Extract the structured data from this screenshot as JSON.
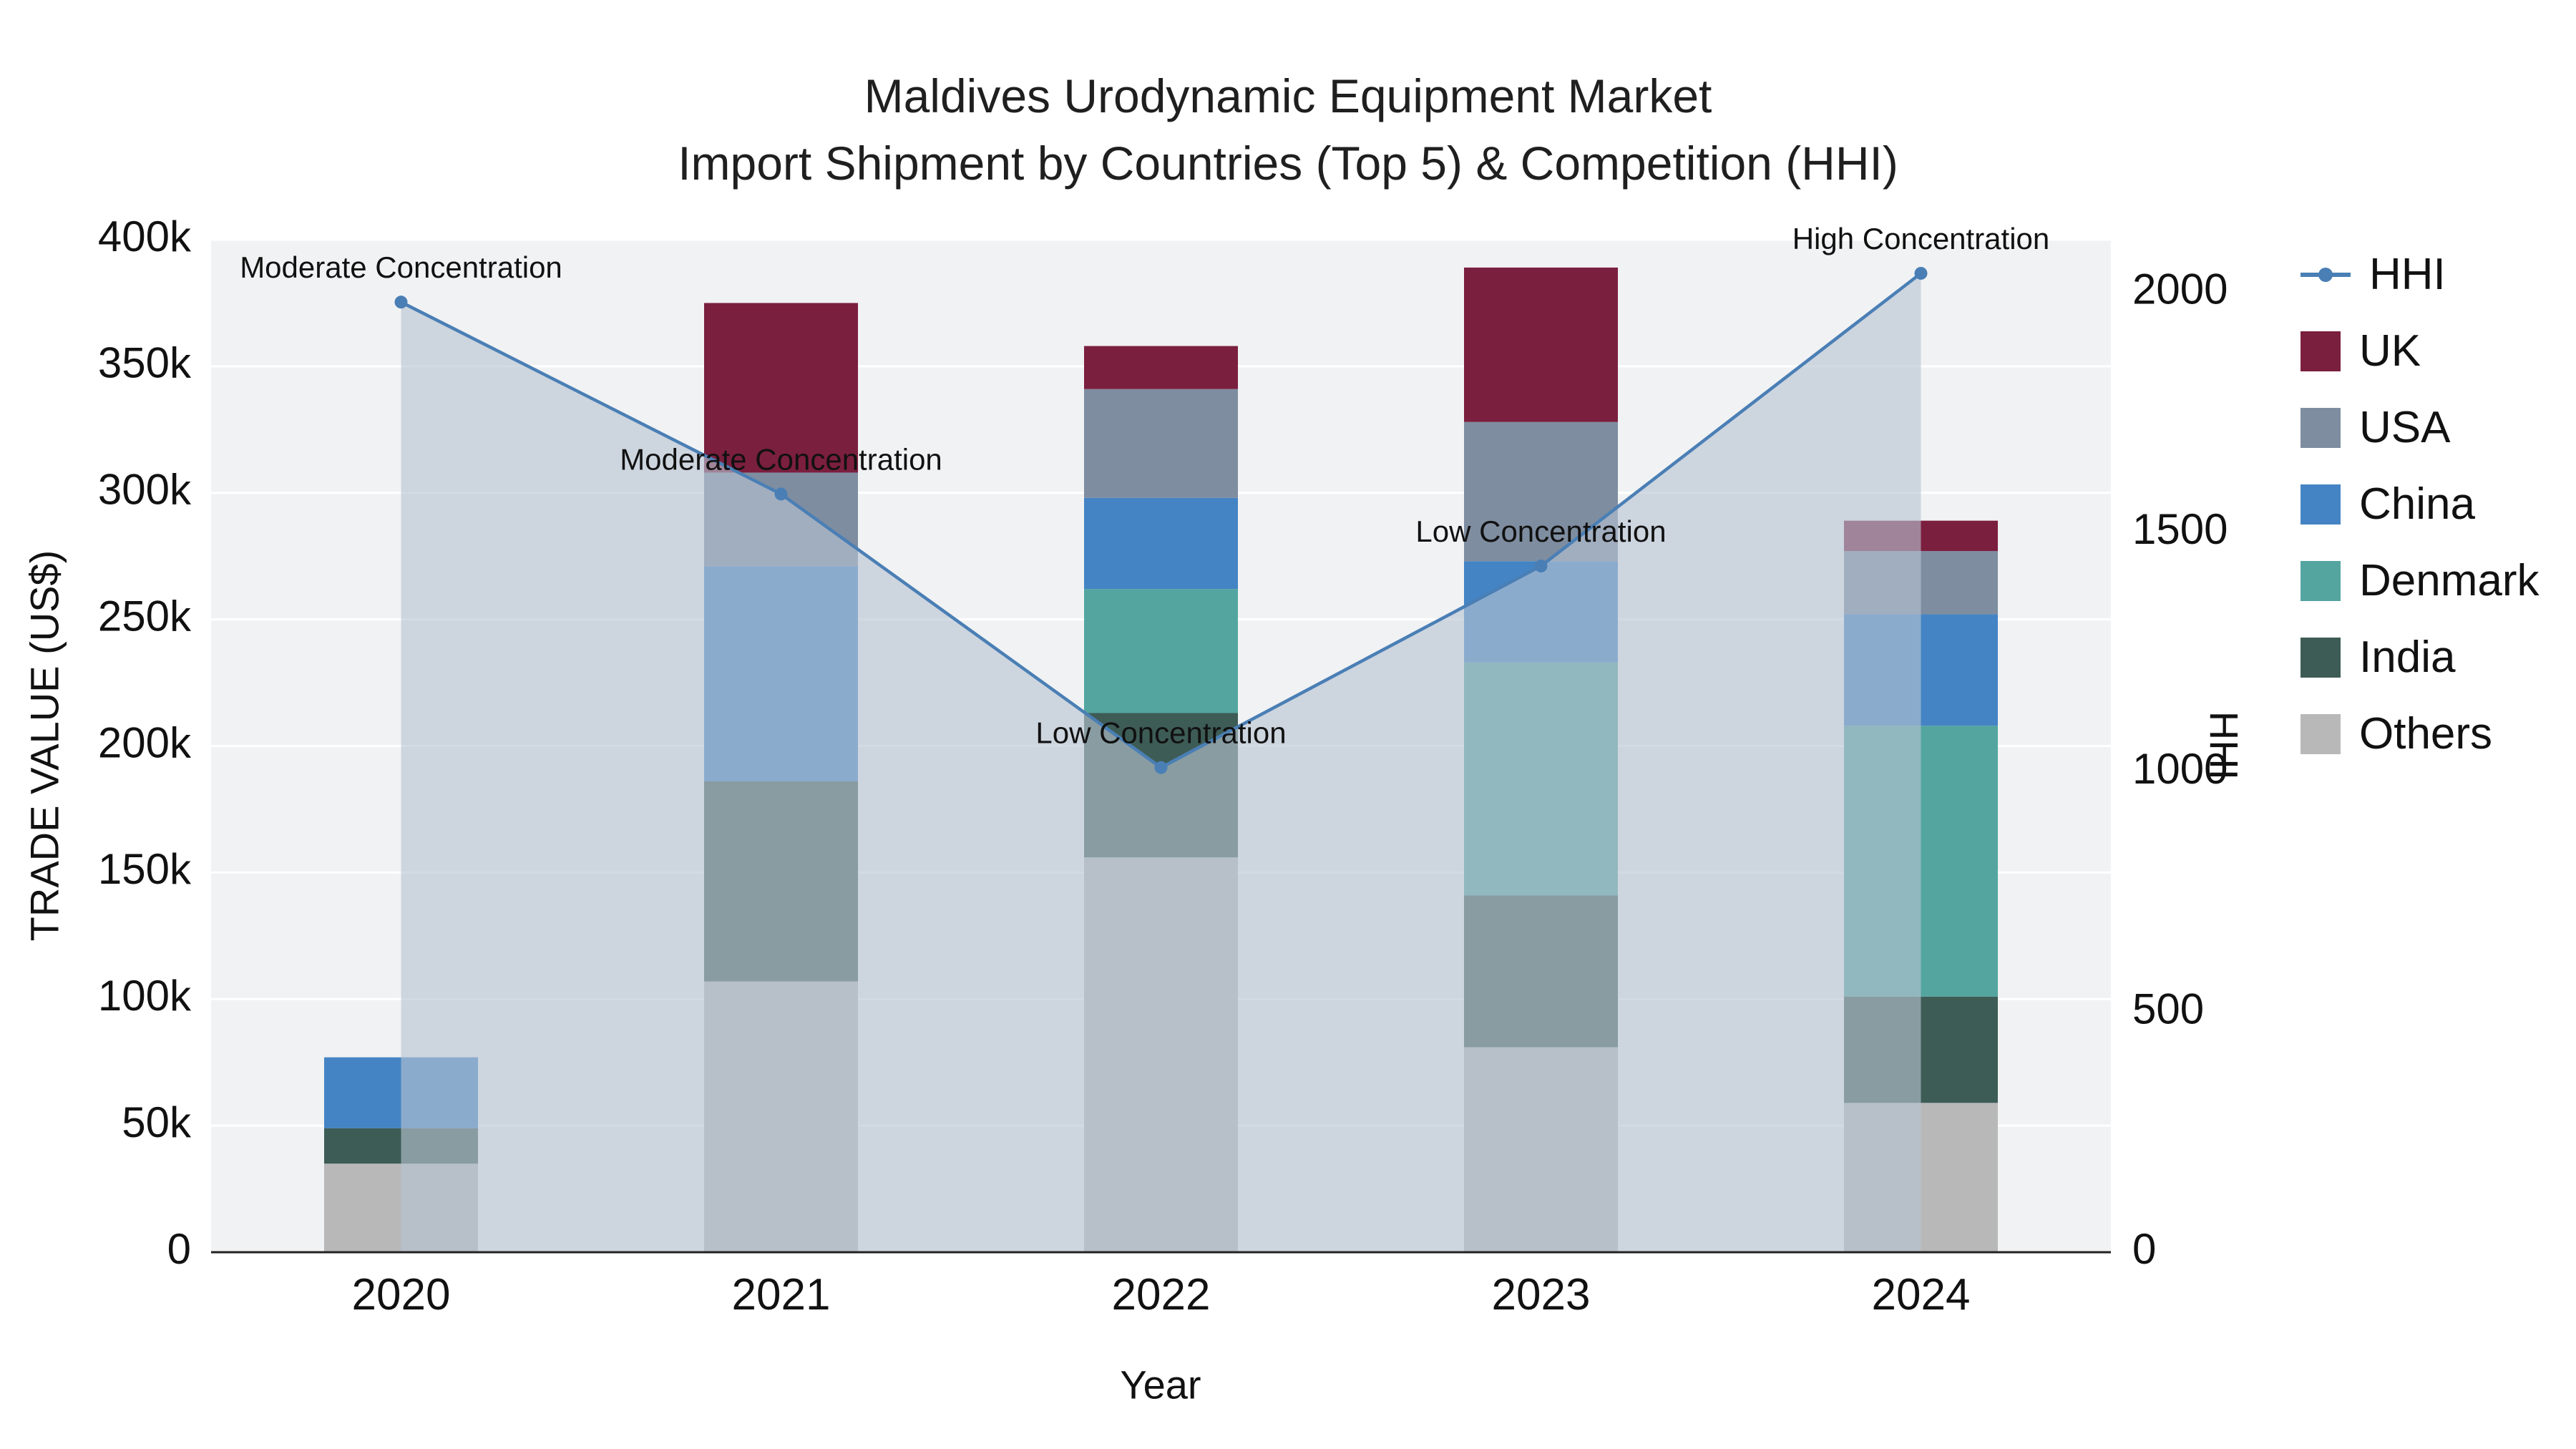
{
  "chart_data": {
    "type": "bar",
    "title": "Maldives Urodynamic Equipment Market",
    "subtitle": "Import Shipment by Countries (Top 5) & Competition (HHI)",
    "xlabel": "Year",
    "ylabel_left": "TRADE VALUE (US$)",
    "ylabel_right": "HHI",
    "categories": [
      "2020",
      "2021",
      "2022",
      "2023",
      "2024"
    ],
    "values_unit": "US$ thousands",
    "series": [
      {
        "name": "Others",
        "color": "#b8b8b8",
        "values": [
          35,
          107,
          156,
          81,
          59
        ]
      },
      {
        "name": "India",
        "color": "#3d5c55",
        "values": [
          14,
          79,
          57,
          60,
          42
        ]
      },
      {
        "name": "Denmark",
        "color": "#54a5a0",
        "values": [
          0,
          0,
          49,
          92,
          107
        ]
      },
      {
        "name": "China",
        "color": "#4484c4",
        "values": [
          28,
          85,
          36,
          40,
          44
        ]
      },
      {
        "name": "USA",
        "color": "#7e8da0",
        "values": [
          0,
          37,
          43,
          55,
          25
        ]
      },
      {
        "name": "UK",
        "color": "#7b1f3e",
        "values": [
          0,
          67,
          17,
          61,
          12
        ]
      }
    ],
    "hhi": {
      "name": "HHI",
      "color": "#4a7fb5",
      "area_fill": "rgba(182,196,210,0.62)",
      "values": [
        1980,
        1580,
        1010,
        1430,
        2040
      ]
    },
    "annotations": [
      {
        "year_index": 0,
        "text": "Moderate Concentration"
      },
      {
        "year_index": 1,
        "text": "Moderate Concentration"
      },
      {
        "year_index": 2,
        "text": "Low Concentration"
      },
      {
        "year_index": 3,
        "text": "Low Concentration"
      },
      {
        "year_index": 4,
        "text": "High Concentration"
      }
    ],
    "y_left": {
      "min": 0,
      "max": 400,
      "tick_values": [
        0,
        50,
        100,
        150,
        200,
        250,
        300,
        350,
        400
      ],
      "tick_labels": [
        "0",
        "50k",
        "100k",
        "150k",
        "200k",
        "250k",
        "300k",
        "350k",
        "400k"
      ]
    },
    "y_right": {
      "min": 0,
      "max": 2110,
      "tick_values": [
        0,
        500,
        1000,
        1500,
        2000
      ],
      "tick_labels": [
        "0",
        "500",
        "1000",
        "1500",
        "2000"
      ]
    },
    "legend": [
      {
        "label": "HHI",
        "color": "#4a7fb5",
        "type": "line"
      },
      {
        "label": "UK",
        "color": "#7b1f3e",
        "type": "square"
      },
      {
        "label": "USA",
        "color": "#7e8da0",
        "type": "square"
      },
      {
        "label": "China",
        "color": "#4484c4",
        "type": "square"
      },
      {
        "label": "Denmark",
        "color": "#54a5a0",
        "type": "square"
      },
      {
        "label": "India",
        "color": "#3d5c55",
        "type": "square"
      },
      {
        "label": "Others",
        "color": "#b8b8b8",
        "type": "square"
      }
    ]
  }
}
